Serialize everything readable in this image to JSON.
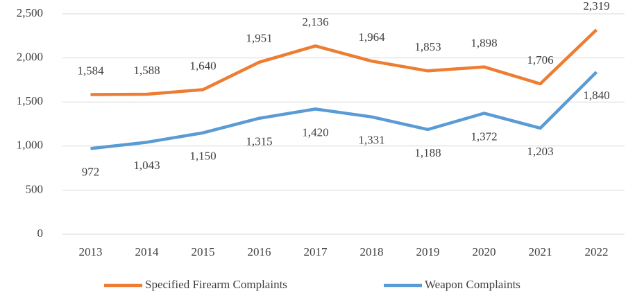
{
  "chart_data": {
    "type": "line",
    "categories": [
      "2013",
      "2014",
      "2015",
      "2016",
      "2017",
      "2018",
      "2019",
      "2020",
      "2021",
      "2022"
    ],
    "series": [
      {
        "name": "Specified Firearm Complaints",
        "color": "#ed7d31",
        "values": [
          1584,
          1588,
          1640,
          1951,
          2136,
          1964,
          1853,
          1898,
          1706,
          2319
        ],
        "value_labels": [
          "1,584",
          "1,588",
          "1,640",
          "1,951",
          "2,136",
          "1,964",
          "1,853",
          "1,898",
          "1,706",
          "2,319"
        ]
      },
      {
        "name": "Weapon Complaints",
        "color": "#5b9bd5",
        "values": [
          972,
          1043,
          1150,
          1315,
          1420,
          1331,
          1188,
          1372,
          1203,
          1840
        ],
        "value_labels": [
          "972",
          "1,043",
          "1,150",
          "1,315",
          "1,420",
          "1,331",
          "1,188",
          "1,372",
          "1,203",
          "1,840"
        ]
      }
    ],
    "ylim": [
      0,
      2500
    ],
    "yticks": [
      0,
      500,
      {
        "value": 1000,
        "label": "1,000"
      },
      {
        "value": 1500,
        "label": "1,500"
      },
      {
        "value": 2000,
        "label": "2,000"
      },
      {
        "value": 2500,
        "label": "2,500"
      }
    ],
    "grid": true,
    "legend": "bottom"
  }
}
